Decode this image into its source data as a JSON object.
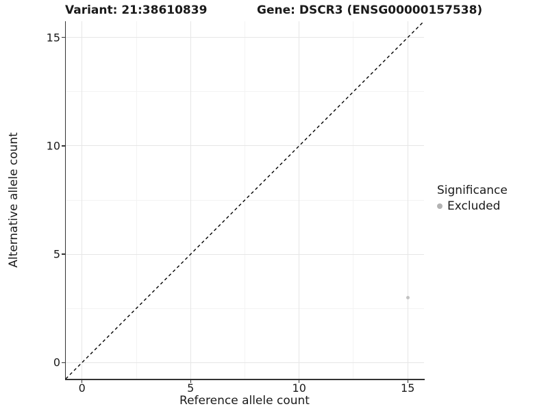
{
  "chart_data": {
    "type": "scatter",
    "titles": {
      "left": "Variant: 21:38610839",
      "right": "Gene: DSCR3 (ENSG00000157538)"
    },
    "xlabel": "Reference allele count",
    "ylabel": "Alternative allele count",
    "xlim": [
      -0.75,
      15.75
    ],
    "ylim": [
      -0.75,
      15.75
    ],
    "xticks": [
      0,
      5,
      10,
      15
    ],
    "xtick_labels": [
      "0",
      "5",
      "10",
      "15"
    ],
    "yticks": [
      0,
      5,
      10,
      15
    ],
    "ytick_labels": [
      "0",
      "5",
      "10",
      "15"
    ],
    "minor_ticks": [
      2.5,
      7.5,
      12.5
    ],
    "grid": true,
    "identity_line": {
      "slope": 1,
      "intercept": 0,
      "style": "dashed",
      "color": "#000000"
    },
    "series": [
      {
        "name": "Excluded",
        "color": "#c2c2c2",
        "points": [
          {
            "x": 15,
            "y": 3
          }
        ]
      }
    ],
    "legend": {
      "title": "Significance",
      "position": "right",
      "items": [
        {
          "label": "Excluded",
          "color": "#b3b3b3"
        }
      ]
    },
    "colors": {
      "grid_major": "#e6e6e6",
      "grid_minor": "#f3f3f3",
      "axis_line": "#333333",
      "tick_mark": "#333333",
      "text": "#1a1a1a",
      "background": "#ffffff"
    }
  }
}
